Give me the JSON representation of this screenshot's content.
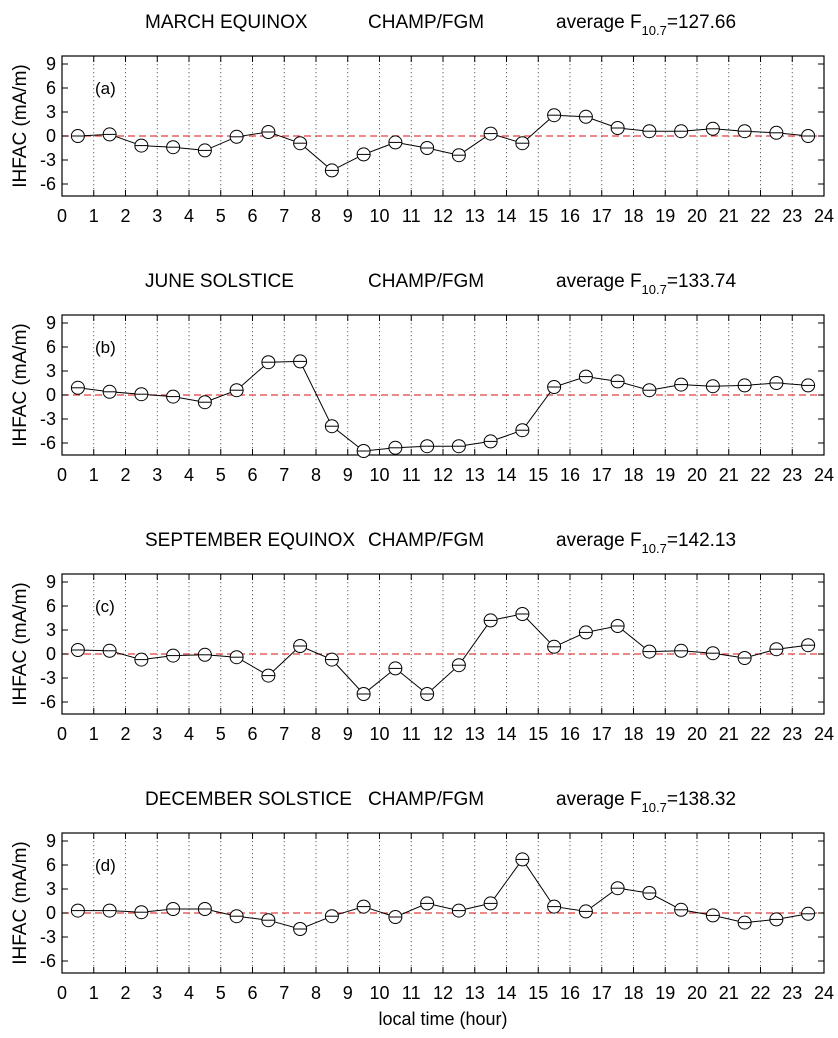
{
  "chart_data": [
    {
      "type": "line",
      "title_left": "MARCH EQUINOX",
      "title_mid": "CHAMP/FGM",
      "title_right_prefix": "average F",
      "title_right_sub": "10.7",
      "title_right_value": "=127.66",
      "panel_label": "(a)",
      "ylabel": "IHFAC (mA/m)",
      "xlabel": "",
      "xlim": [
        0,
        24
      ],
      "ylim": [
        -7.5,
        10
      ],
      "xticks": [
        0,
        1,
        2,
        3,
        4,
        5,
        6,
        7,
        8,
        9,
        10,
        11,
        12,
        13,
        14,
        15,
        16,
        17,
        18,
        19,
        20,
        21,
        22,
        23,
        24
      ],
      "yticks": [
        -6,
        -3,
        0,
        3,
        6,
        9
      ],
      "x": [
        0.5,
        1.5,
        2.5,
        3.5,
        4.5,
        5.5,
        6.5,
        7.5,
        8.5,
        9.5,
        10.5,
        11.5,
        12.5,
        13.5,
        14.5,
        15.5,
        16.5,
        17.5,
        18.5,
        19.5,
        20.5,
        21.5,
        22.5,
        23.5
      ],
      "y": [
        0.0,
        0.2,
        -1.2,
        -1.4,
        -1.8,
        -0.1,
        0.5,
        -0.9,
        -4.3,
        -2.3,
        -0.8,
        -1.5,
        -2.4,
        0.3,
        -0.9,
        2.6,
        2.4,
        1.0,
        0.6,
        0.6,
        0.9,
        0.6,
        0.4,
        0.0
      ],
      "reference_line": 0,
      "grid": "vertical dotted"
    },
    {
      "type": "line",
      "title_left": "JUNE SOLSTICE",
      "title_mid": "CHAMP/FGM",
      "title_right_prefix": "average F",
      "title_right_sub": "10.7",
      "title_right_value": "=133.74",
      "panel_label": "(b)",
      "ylabel": "IHFAC (mA/m)",
      "xlabel": "",
      "xlim": [
        0,
        24
      ],
      "ylim": [
        -7.5,
        10
      ],
      "xticks": [
        0,
        1,
        2,
        3,
        4,
        5,
        6,
        7,
        8,
        9,
        10,
        11,
        12,
        13,
        14,
        15,
        16,
        17,
        18,
        19,
        20,
        21,
        22,
        23,
        24
      ],
      "yticks": [
        -6,
        -3,
        0,
        3,
        6,
        9
      ],
      "x": [
        0.5,
        1.5,
        2.5,
        3.5,
        4.5,
        5.5,
        6.5,
        7.5,
        8.5,
        9.5,
        10.5,
        11.5,
        12.5,
        13.5,
        14.5,
        15.5,
        16.5,
        17.5,
        18.5,
        19.5,
        20.5,
        21.5,
        22.5,
        23.5
      ],
      "y": [
        0.9,
        0.4,
        0.1,
        -0.2,
        -0.9,
        0.6,
        4.1,
        4.2,
        -3.9,
        -7.0,
        -6.6,
        -6.4,
        -6.4,
        -5.8,
        -4.4,
        1.0,
        2.3,
        1.7,
        0.6,
        1.3,
        1.1,
        1.2,
        1.5,
        1.2
      ],
      "reference_line": 0,
      "grid": "vertical dotted"
    },
    {
      "type": "line",
      "title_left": "SEPTEMBER EQUINOX",
      "title_mid": "CHAMP/FGM",
      "title_right_prefix": "average F",
      "title_right_sub": "10.7",
      "title_right_value": "=142.13",
      "panel_label": "(c)",
      "ylabel": "IHFAC (mA/m)",
      "xlabel": "",
      "xlim": [
        0,
        24
      ],
      "ylim": [
        -7.5,
        10
      ],
      "xticks": [
        0,
        1,
        2,
        3,
        4,
        5,
        6,
        7,
        8,
        9,
        10,
        11,
        12,
        13,
        14,
        15,
        16,
        17,
        18,
        19,
        20,
        21,
        22,
        23,
        24
      ],
      "yticks": [
        -6,
        -3,
        0,
        3,
        6,
        9
      ],
      "x": [
        0.5,
        1.5,
        2.5,
        3.5,
        4.5,
        5.5,
        6.5,
        7.5,
        8.5,
        9.5,
        10.5,
        11.5,
        12.5,
        13.5,
        14.5,
        15.5,
        16.5,
        17.5,
        18.5,
        19.5,
        20.5,
        21.5,
        22.5,
        23.5
      ],
      "y": [
        0.5,
        0.4,
        -0.7,
        -0.2,
        -0.1,
        -0.4,
        -2.7,
        1.0,
        -0.7,
        -5.0,
        -1.8,
        -5.0,
        -1.4,
        4.2,
        5.0,
        0.9,
        2.7,
        3.5,
        0.3,
        0.4,
        0.1,
        -0.5,
        0.6,
        1.1
      ],
      "reference_line": 0,
      "grid": "vertical dotted"
    },
    {
      "type": "line",
      "title_left": "DECEMBER SOLSTICE",
      "title_mid": "CHAMP/FGM",
      "title_right_prefix": "average F",
      "title_right_sub": "10.7",
      "title_right_value": "=138.32",
      "panel_label": "(d)",
      "ylabel": "IHFAC (mA/m)",
      "xlabel": "local time (hour)",
      "xlim": [
        0,
        24
      ],
      "ylim": [
        -7.5,
        10
      ],
      "xticks": [
        0,
        1,
        2,
        3,
        4,
        5,
        6,
        7,
        8,
        9,
        10,
        11,
        12,
        13,
        14,
        15,
        16,
        17,
        18,
        19,
        20,
        21,
        22,
        23,
        24
      ],
      "yticks": [
        -6,
        -3,
        0,
        3,
        6,
        9
      ],
      "x": [
        0.5,
        1.5,
        2.5,
        3.5,
        4.5,
        5.5,
        6.5,
        7.5,
        8.5,
        9.5,
        10.5,
        11.5,
        12.5,
        13.5,
        14.5,
        15.5,
        16.5,
        17.5,
        18.5,
        19.5,
        20.5,
        21.5,
        22.5,
        23.5
      ],
      "y": [
        0.3,
        0.3,
        0.1,
        0.5,
        0.5,
        -0.4,
        -0.9,
        -2.0,
        -0.4,
        0.8,
        -0.5,
        1.2,
        0.3,
        1.2,
        6.7,
        0.8,
        0.2,
        3.1,
        2.5,
        0.4,
        -0.3,
        -1.2,
        -0.8,
        -0.1
      ],
      "reference_line": 0,
      "grid": "vertical dotted"
    }
  ],
  "colors": {
    "reference_line": "#e04040",
    "series": "#000000",
    "grid": "#555555"
  }
}
